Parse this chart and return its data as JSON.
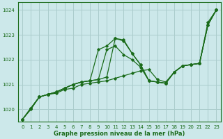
{
  "background_color": "#cce8ea",
  "grid_color": "#aacccc",
  "line_color": "#1a6b1a",
  "xlabel": "Graphe pression niveau de la mer (hPa)",
  "ylim": [
    1019.5,
    1024.3
  ],
  "xlim": [
    -0.5,
    23.5
  ],
  "yticks": [
    1020,
    1021,
    1022,
    1023,
    1024
  ],
  "xticks": [
    0,
    1,
    2,
    3,
    4,
    5,
    6,
    7,
    8,
    9,
    10,
    11,
    12,
    13,
    14,
    15,
    16,
    17,
    18,
    19,
    20,
    21,
    22,
    23
  ],
  "series": [
    [
      1019.6,
      1020.0,
      1020.5,
      1020.6,
      1020.65,
      1020.8,
      1020.85,
      1021.0,
      1021.05,
      1021.1,
      1021.15,
      1021.25,
      1021.35,
      1021.45,
      1021.55,
      1021.6,
      1021.2,
      1021.1,
      1021.5,
      1021.75,
      1021.8,
      1021.85,
      1023.5,
      1024.0
    ],
    [
      1019.6,
      1020.05,
      1020.5,
      1020.6,
      1020.7,
      1020.85,
      1021.0,
      1021.1,
      1021.15,
      1021.2,
      1022.4,
      1022.55,
      1022.2,
      1022.0,
      1021.7,
      1021.15,
      1021.1,
      1021.05,
      1021.5,
      1021.75,
      1021.8,
      1021.85,
      1023.4,
      1024.0
    ],
    [
      1019.6,
      1020.05,
      1020.5,
      1020.6,
      1020.7,
      1020.85,
      1021.0,
      1021.1,
      1021.15,
      1021.2,
      1021.3,
      1022.85,
      1022.8,
      1022.25,
      1021.8,
      1021.15,
      1021.1,
      1021.05,
      1021.5,
      1021.75,
      1021.8,
      1021.85,
      1023.4,
      1024.0
    ],
    [
      1019.6,
      1020.05,
      1020.5,
      1020.6,
      1020.7,
      1020.85,
      1021.0,
      1021.1,
      1021.15,
      1022.4,
      1022.55,
      1022.85,
      1022.75,
      1022.25,
      1021.8,
      1021.15,
      1021.1,
      1021.05,
      1021.5,
      1021.75,
      1021.8,
      1021.85,
      1023.4,
      1024.0
    ]
  ]
}
